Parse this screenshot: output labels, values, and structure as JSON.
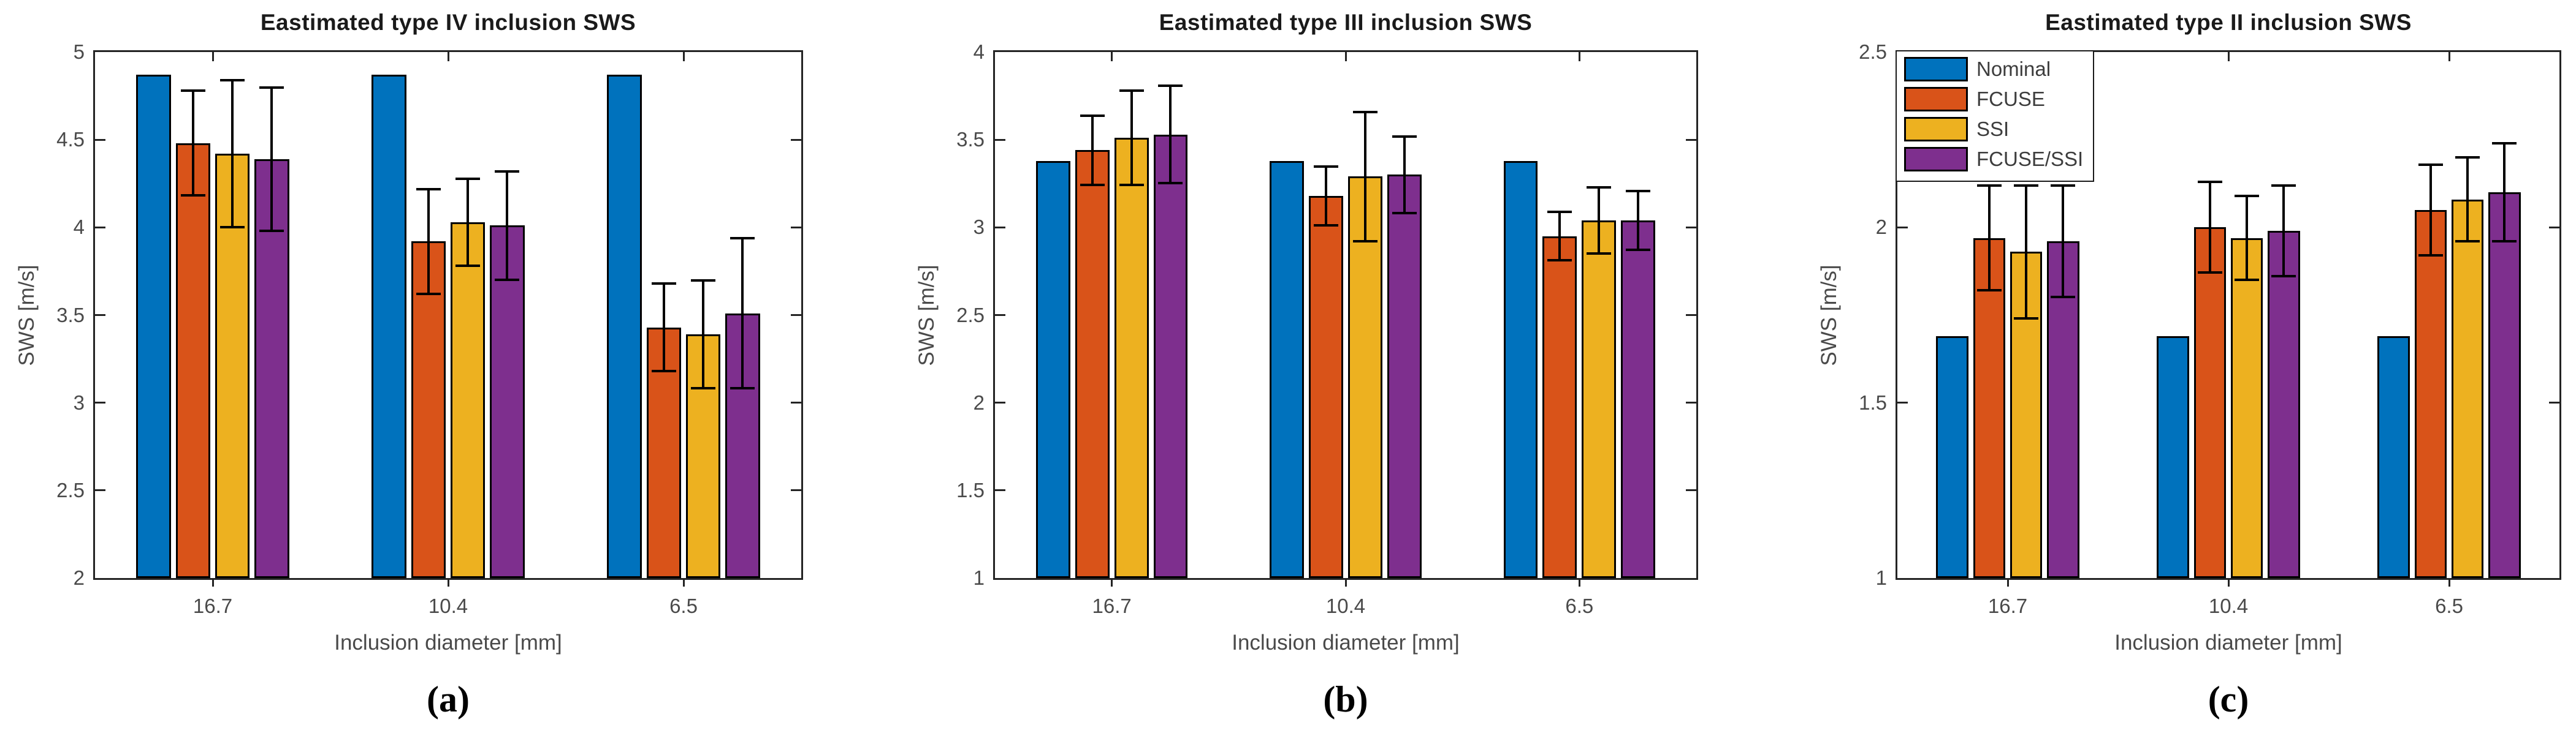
{
  "chart_data": [
    {
      "id": "a",
      "type": "bar",
      "title": "Eastimated type IV inclusion SWS",
      "caption": "(a)",
      "xlabel": "Inclusion diameter [mm]",
      "ylabel": "SWS [m/s]",
      "ylim": [
        2,
        5
      ],
      "ytick_step": 0.5,
      "grid": false,
      "error_bars": true,
      "categories": [
        "16.7",
        "10.4",
        "6.5"
      ],
      "series": [
        {
          "name": "Nominal",
          "color": "#0072BD",
          "values": [
            4.87,
            4.87,
            4.87
          ],
          "errors": [
            0,
            0,
            0
          ]
        },
        {
          "name": "FCUSE",
          "color": "#D95319",
          "values": [
            4.48,
            3.92,
            3.43
          ],
          "errors": [
            0.3,
            0.3,
            0.25
          ]
        },
        {
          "name": "SSI",
          "color": "#EDB120",
          "values": [
            4.42,
            4.03,
            3.39
          ],
          "errors": [
            0.42,
            0.25,
            0.31
          ]
        },
        {
          "name": "FCUSE/SSI",
          "color": "#7E2F8E",
          "values": [
            4.39,
            4.01,
            3.51
          ],
          "errors": [
            0.41,
            0.31,
            0.43
          ]
        }
      ],
      "legend": false
    },
    {
      "id": "b",
      "type": "bar",
      "title": "Eastimated type III inclusion SWS",
      "caption": "(b)",
      "xlabel": "Inclusion diameter [mm]",
      "ylabel": "SWS [m/s]",
      "ylim": [
        1,
        4
      ],
      "ytick_step": 0.5,
      "grid": false,
      "error_bars": true,
      "categories": [
        "16.7",
        "10.4",
        "6.5"
      ],
      "series": [
        {
          "name": "Nominal",
          "color": "#0072BD",
          "values": [
            3.38,
            3.38,
            3.38
          ],
          "errors": [
            0,
            0,
            0
          ]
        },
        {
          "name": "FCUSE",
          "color": "#D95319",
          "values": [
            3.44,
            3.18,
            2.95
          ],
          "errors": [
            0.2,
            0.17,
            0.14
          ]
        },
        {
          "name": "SSI",
          "color": "#EDB120",
          "values": [
            3.51,
            3.29,
            3.04
          ],
          "errors": [
            0.27,
            0.37,
            0.19
          ]
        },
        {
          "name": "FCUSE/SSI",
          "color": "#7E2F8E",
          "values": [
            3.53,
            3.3,
            3.04
          ],
          "errors": [
            0.28,
            0.22,
            0.17
          ]
        }
      ],
      "legend": false
    },
    {
      "id": "c",
      "type": "bar",
      "title": "Eastimated type II inclusion SWS",
      "caption": "(c)",
      "xlabel": "Inclusion diameter [mm]",
      "ylabel": "SWS [m/s]",
      "ylim": [
        1,
        2.5
      ],
      "ytick_step": 0.5,
      "grid": false,
      "error_bars": true,
      "categories": [
        "16.7",
        "10.4",
        "6.5"
      ],
      "series": [
        {
          "name": "Nominal",
          "color": "#0072BD",
          "values": [
            1.69,
            1.69,
            1.69
          ],
          "errors": [
            0,
            0,
            0
          ]
        },
        {
          "name": "FCUSE",
          "color": "#D95319",
          "values": [
            1.97,
            2.0,
            2.05
          ],
          "errors": [
            0.15,
            0.13,
            0.13
          ]
        },
        {
          "name": "SSI",
          "color": "#EDB120",
          "values": [
            1.93,
            1.97,
            2.08
          ],
          "errors": [
            0.19,
            0.12,
            0.12
          ]
        },
        {
          "name": "FCUSE/SSI",
          "color": "#7E2F8E",
          "values": [
            1.96,
            1.99,
            2.1
          ],
          "errors": [
            0.16,
            0.13,
            0.14
          ]
        }
      ],
      "legend": true,
      "legend_position": "top-left"
    }
  ]
}
